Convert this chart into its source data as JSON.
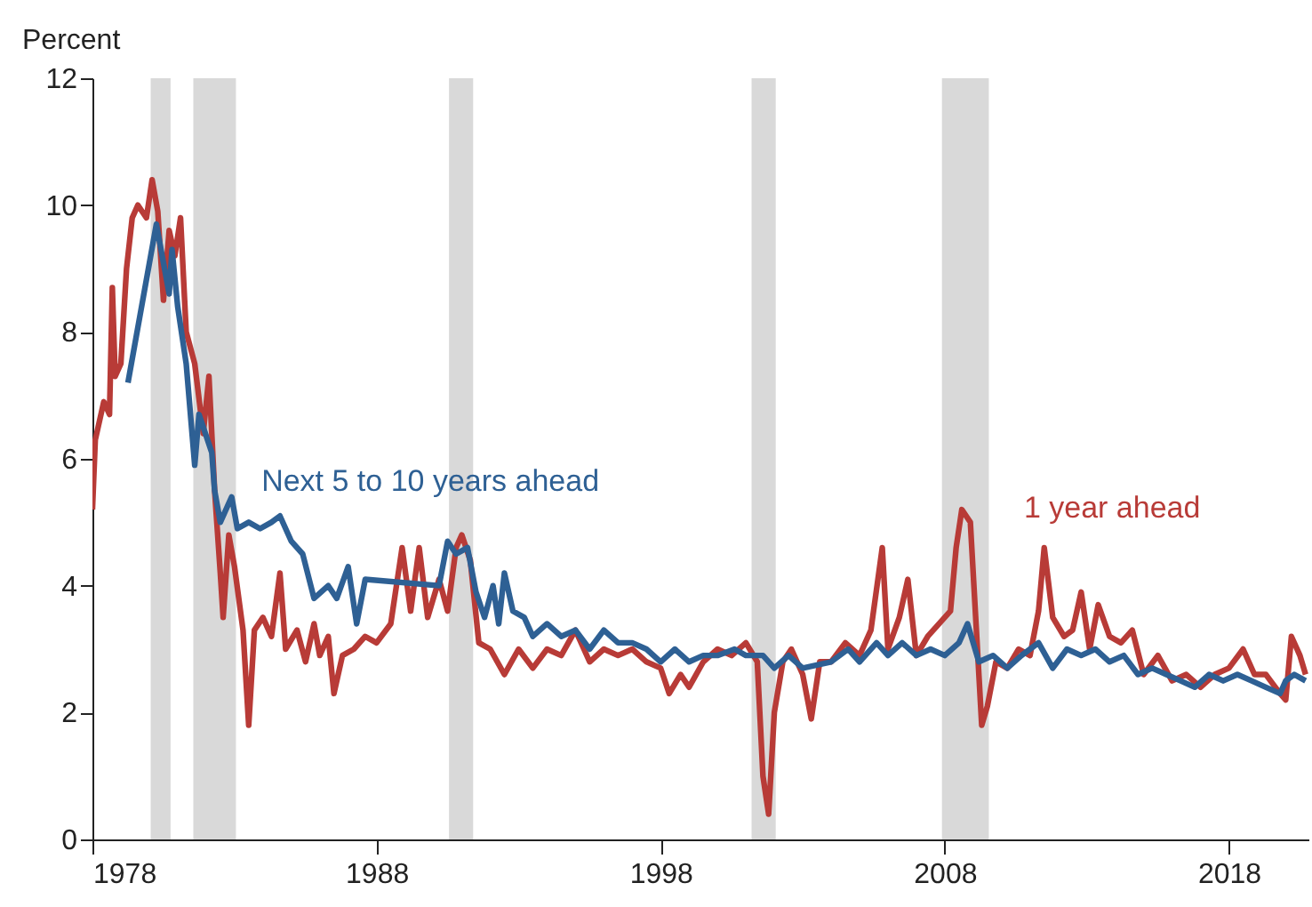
{
  "chart_data": {
    "type": "line",
    "ylabel": "Percent",
    "xlim": [
      1978,
      2020.8
    ],
    "xticks": [
      1978,
      1988,
      1998,
      2008,
      2018
    ],
    "ylim": [
      0,
      12
    ],
    "yticks": [
      0,
      2,
      4,
      6,
      8,
      10,
      12
    ],
    "grid": false,
    "line_style": "solid",
    "bands": [
      {
        "axis": "x",
        "from": 1980.05,
        "to": 1980.75,
        "color": "#d9d9d9"
      },
      {
        "axis": "x",
        "from": 1981.55,
        "to": 1983.05,
        "color": "#d9d9d9"
      },
      {
        "axis": "x",
        "from": 1990.55,
        "to": 1991.4,
        "color": "#d9d9d9"
      },
      {
        "axis": "x",
        "from": 2001.2,
        "to": 2002.05,
        "color": "#d9d9d9"
      },
      {
        "axis": "x",
        "from": 2007.9,
        "to": 2009.55,
        "color": "#d9d9d9"
      }
    ],
    "series": [
      {
        "name": "1 year ahead",
        "color": "#b83b37",
        "x": [
          1978.0,
          1978.1,
          1978.4,
          1978.6,
          1978.7,
          1978.8,
          1979.0,
          1979.2,
          1979.4,
          1979.6,
          1979.9,
          1980.1,
          1980.3,
          1980.5,
          1980.7,
          1980.9,
          1981.1,
          1981.3,
          1981.6,
          1981.9,
          1982.1,
          1982.3,
          1982.5,
          1982.6,
          1982.8,
          1983.0,
          1983.3,
          1983.5,
          1983.7,
          1984.0,
          1984.3,
          1984.6,
          1984.8,
          1985.2,
          1985.5,
          1985.8,
          1986.0,
          1986.3,
          1986.5,
          1986.8,
          1987.2,
          1987.6,
          1988.0,
          1988.5,
          1988.9,
          1989.2,
          1989.5,
          1989.8,
          1990.2,
          1990.5,
          1990.8,
          1991.0,
          1991.3,
          1991.6,
          1992.0,
          1992.5,
          1993.0,
          1993.5,
          1994.0,
          1994.5,
          1995.0,
          1995.5,
          1996.0,
          1996.5,
          1997.0,
          1997.5,
          1998.0,
          1998.3,
          1998.7,
          1999.0,
          1999.5,
          2000.0,
          2000.5,
          2001.0,
          2001.4,
          2001.6,
          2001.8,
          2002.0,
          2002.3,
          2002.6,
          2003.0,
          2003.3,
          2003.6,
          2004.0,
          2004.5,
          2005.0,
          2005.4,
          2005.8,
          2006.0,
          2006.4,
          2006.7,
          2007.0,
          2007.4,
          2007.8,
          2008.2,
          2008.4,
          2008.6,
          2008.9,
          2009.1,
          2009.3,
          2009.5,
          2009.8,
          2010.2,
          2010.6,
          2011.0,
          2011.3,
          2011.5,
          2011.8,
          2012.2,
          2012.5,
          2012.8,
          2013.1,
          2013.4,
          2013.8,
          2014.2,
          2014.6,
          2015.0,
          2015.5,
          2016.0,
          2016.5,
          2017.0,
          2017.5,
          2018.0,
          2018.5,
          2018.9,
          2019.3,
          2019.8,
          2020.0,
          2020.2,
          2020.5,
          2020.7
        ],
        "values": [
          5.2,
          6.3,
          6.9,
          6.7,
          8.7,
          7.3,
          7.5,
          9.0,
          9.8,
          10.0,
          9.8,
          10.4,
          9.9,
          8.5,
          9.6,
          9.2,
          9.8,
          8.0,
          7.5,
          6.4,
          7.3,
          5.5,
          4.2,
          3.5,
          4.8,
          4.3,
          3.3,
          1.8,
          3.3,
          3.5,
          3.2,
          4.2,
          3.0,
          3.3,
          2.8,
          3.4,
          2.9,
          3.2,
          2.3,
          2.9,
          3.0,
          3.2,
          3.1,
          3.4,
          4.6,
          3.6,
          4.6,
          3.5,
          4.1,
          3.6,
          4.6,
          4.8,
          4.4,
          3.1,
          3.0,
          2.6,
          3.0,
          2.7,
          3.0,
          2.9,
          3.3,
          2.8,
          3.0,
          2.9,
          3.0,
          2.8,
          2.7,
          2.3,
          2.6,
          2.4,
          2.8,
          3.0,
          2.9,
          3.1,
          2.8,
          1.0,
          0.4,
          2.0,
          2.8,
          3.0,
          2.6,
          1.9,
          2.8,
          2.8,
          3.1,
          2.9,
          3.3,
          4.6,
          3.0,
          3.5,
          4.1,
          2.9,
          3.2,
          3.4,
          3.6,
          4.6,
          5.2,
          5.0,
          3.4,
          1.8,
          2.1,
          2.8,
          2.7,
          3.0,
          2.9,
          3.6,
          4.6,
          3.5,
          3.2,
          3.3,
          3.9,
          3.0,
          3.7,
          3.2,
          3.1,
          3.3,
          2.6,
          2.9,
          2.5,
          2.6,
          2.4,
          2.6,
          2.7,
          3.0,
          2.6,
          2.6,
          2.3,
          2.2,
          3.2,
          2.9,
          2.6
        ]
      },
      {
        "name": "Next 5 to 10 years ahead",
        "color": "#2e6094",
        "x": [
          1979.25,
          1980.25,
          1980.7,
          1980.8,
          1981.0,
          1981.3,
          1981.6,
          1981.75,
          1982.2,
          1982.3,
          1982.5,
          1982.9,
          1983.1,
          1983.5,
          1983.9,
          1984.3,
          1984.6,
          1985.0,
          1985.4,
          1985.8,
          1986.3,
          1986.6,
          1987.0,
          1987.3,
          1987.6,
          1990.2,
          1990.5,
          1990.8,
          1991.2,
          1991.5,
          1991.8,
          1992.1,
          1992.3,
          1992.5,
          1992.8,
          1993.2,
          1993.5,
          1994.0,
          1994.5,
          1995.0,
          1995.5,
          1996.0,
          1996.5,
          1997.0,
          1997.5,
          1998.0,
          1998.5,
          1999.0,
          1999.5,
          2000.0,
          2000.6,
          2001.0,
          2001.6,
          2002.0,
          2002.5,
          2003.0,
          2004.0,
          2004.6,
          2005.0,
          2005.6,
          2006.0,
          2006.5,
          2007.0,
          2007.5,
          2008.0,
          2008.5,
          2008.8,
          2009.2,
          2009.7,
          2010.2,
          2010.7,
          2011.3,
          2011.8,
          2012.3,
          2012.8,
          2013.3,
          2013.8,
          2014.3,
          2014.8,
          2015.3,
          2015.8,
          2016.3,
          2016.8,
          2017.3,
          2017.8,
          2018.3,
          2018.8,
          2019.3,
          2019.8,
          2020.0,
          2020.3,
          2020.7
        ],
        "values": [
          7.2,
          9.7,
          8.6,
          9.3,
          8.4,
          7.5,
          5.9,
          6.7,
          6.1,
          5.5,
          5.0,
          5.4,
          4.9,
          5.0,
          4.9,
          5.0,
          5.1,
          4.7,
          4.5,
          3.8,
          4.0,
          3.8,
          4.3,
          3.4,
          4.1,
          4.0,
          4.7,
          4.5,
          4.6,
          3.9,
          3.5,
          4.0,
          3.4,
          4.2,
          3.6,
          3.5,
          3.2,
          3.4,
          3.2,
          3.3,
          3.0,
          3.3,
          3.1,
          3.1,
          3.0,
          2.8,
          3.0,
          2.8,
          2.9,
          2.9,
          3.0,
          2.9,
          2.9,
          2.7,
          2.9,
          2.7,
          2.8,
          3.0,
          2.8,
          3.1,
          2.9,
          3.1,
          2.9,
          3.0,
          2.9,
          3.1,
          3.4,
          2.8,
          2.9,
          2.7,
          2.9,
          3.1,
          2.7,
          3.0,
          2.9,
          3.0,
          2.8,
          2.9,
          2.6,
          2.7,
          2.6,
          2.5,
          2.4,
          2.6,
          2.5,
          2.6,
          2.5,
          2.4,
          2.3,
          2.5,
          2.6,
          2.5
        ]
      }
    ]
  }
}
